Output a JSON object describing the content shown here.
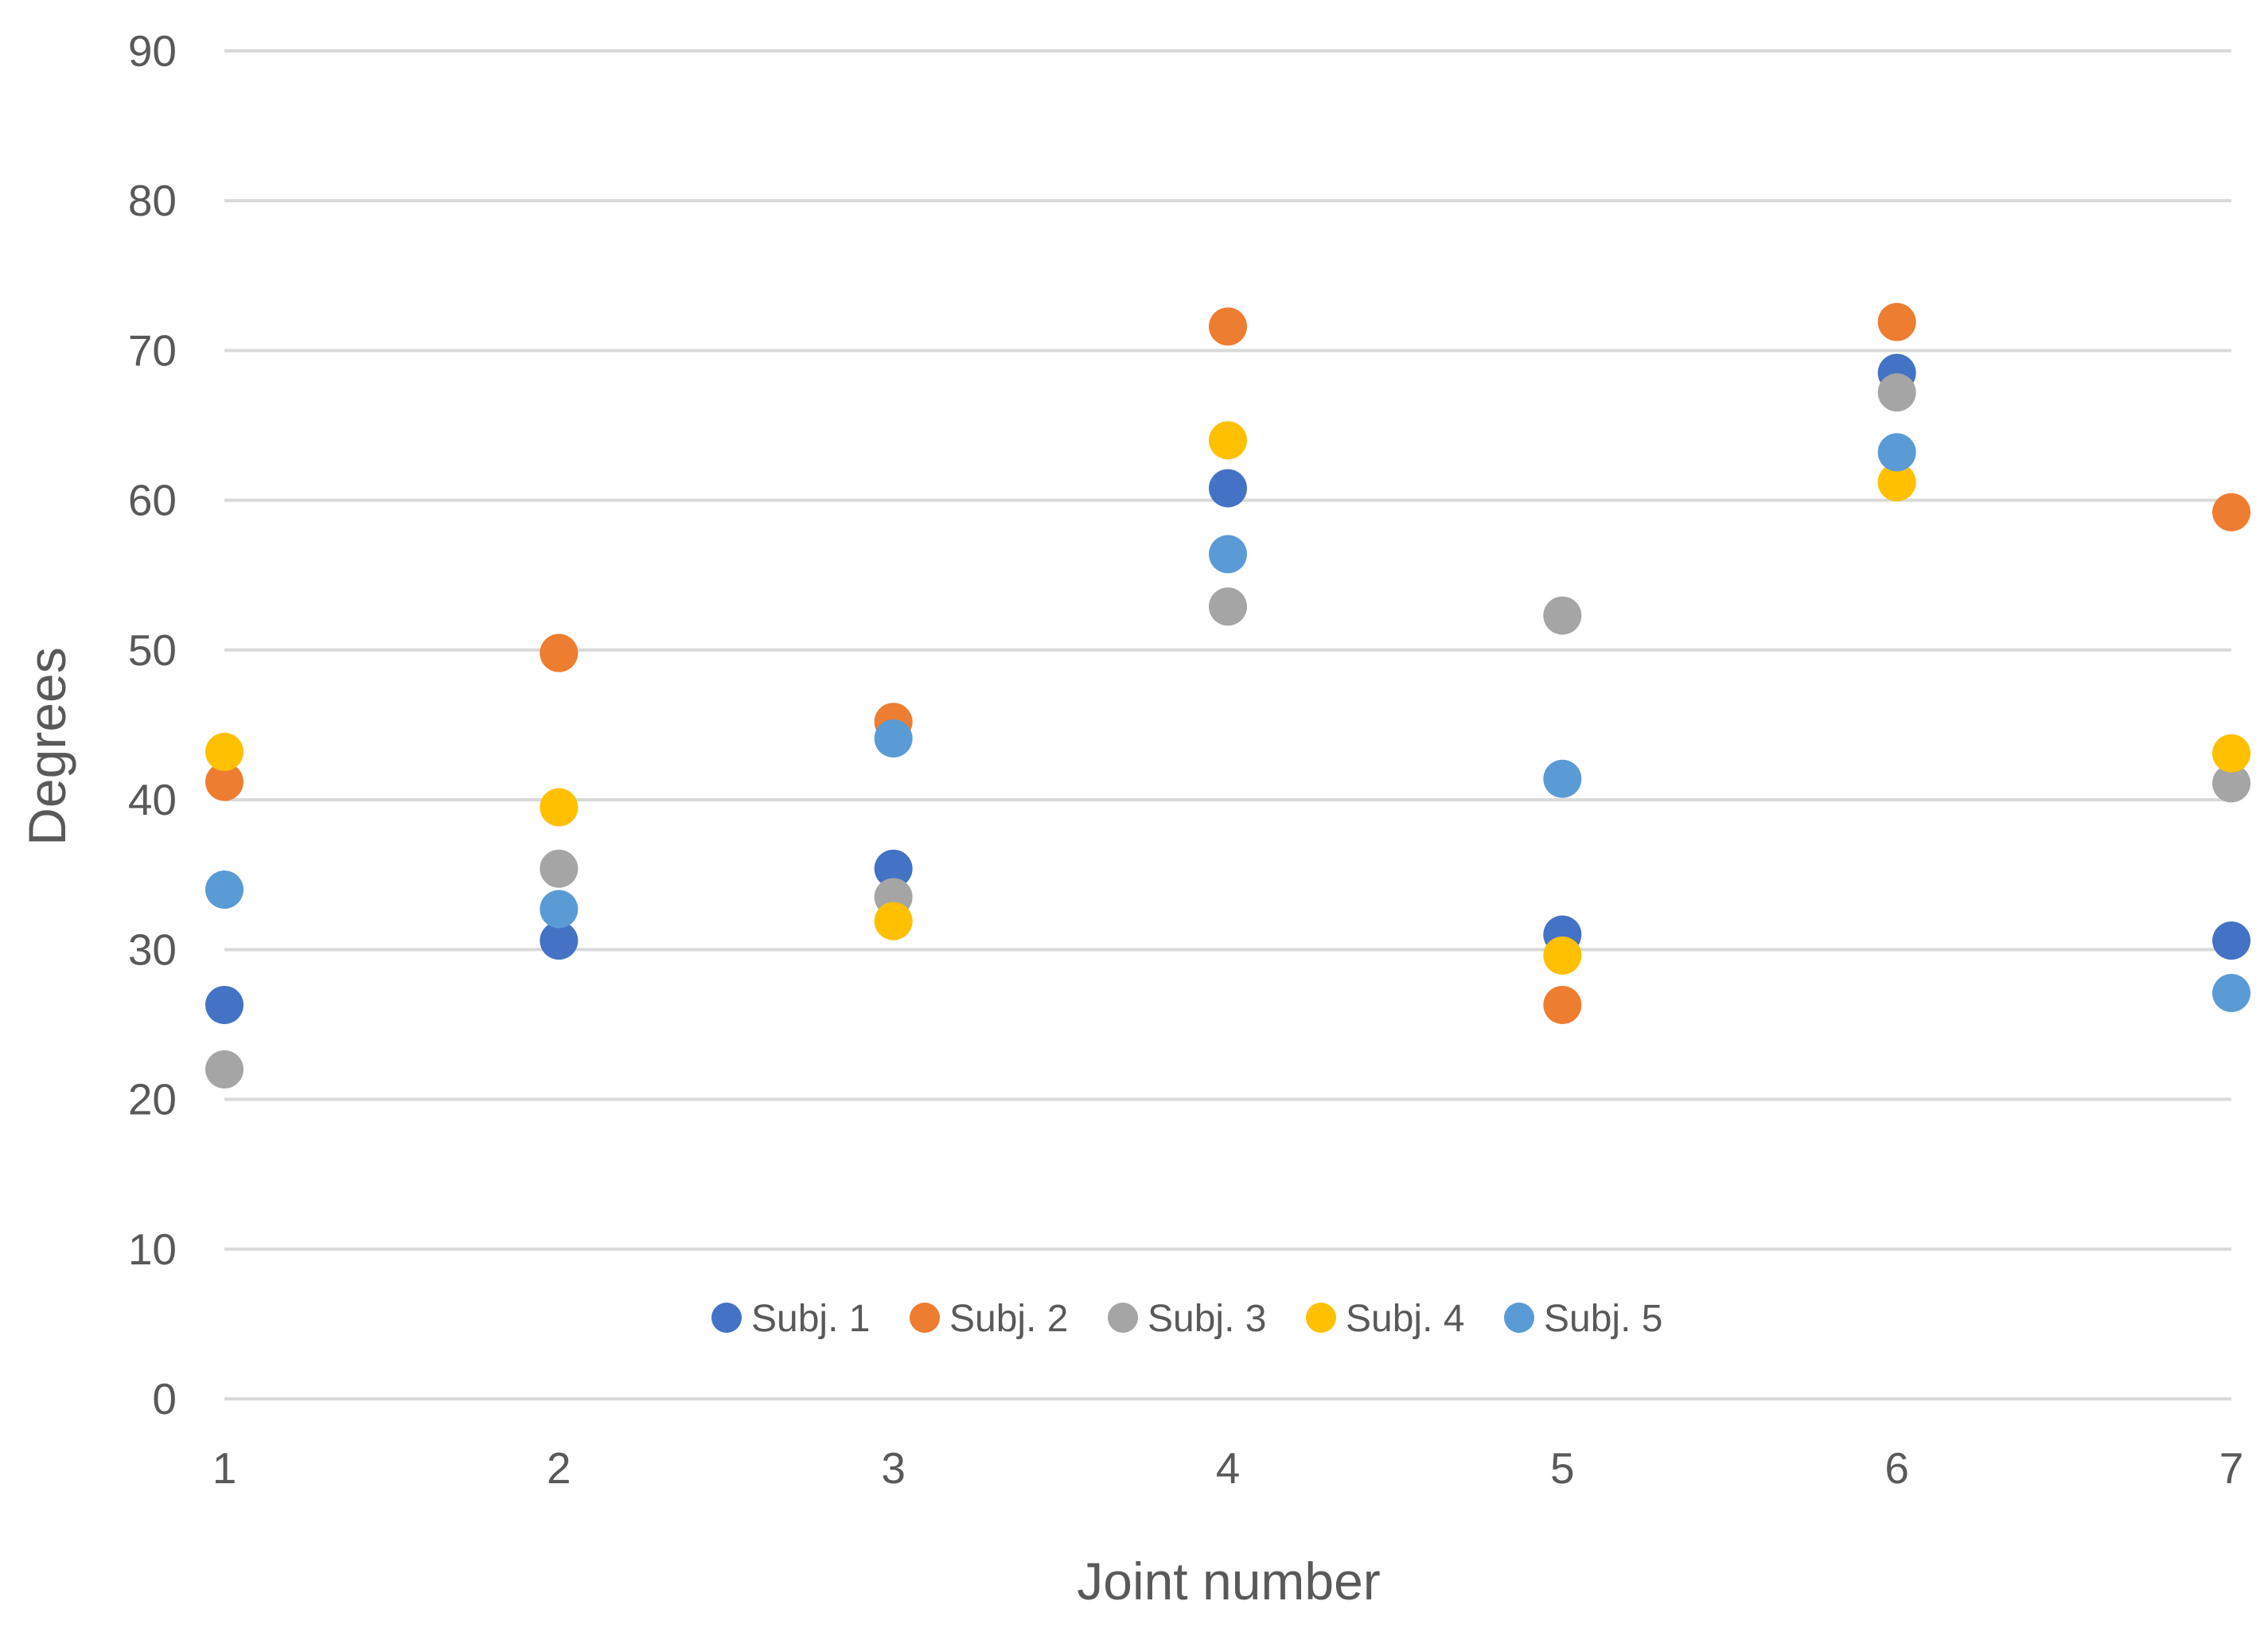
{
  "chart_data": {
    "type": "scatter",
    "title": "",
    "xlabel": "Joint number",
    "ylabel": "Degrees",
    "xlim": [
      1,
      7
    ],
    "ylim": [
      0,
      90
    ],
    "x_ticks": [
      1,
      2,
      3,
      4,
      5,
      6,
      7
    ],
    "y_ticks": [
      0,
      10,
      20,
      30,
      40,
      50,
      60,
      70,
      80,
      90
    ],
    "grid": true,
    "legend_position": "bottom-inside",
    "x": [
      1,
      2,
      3,
      4,
      5,
      6,
      7
    ],
    "series": [
      {
        "name": "Subj. 1",
        "color": "#4472c4",
        "values": [
          26.3,
          30.6,
          35.4,
          60.8,
          31.0,
          68.5,
          30.6
        ]
      },
      {
        "name": "Subj. 2",
        "color": "#ed7d31",
        "values": [
          41.2,
          49.8,
          45.2,
          71.6,
          26.3,
          71.9,
          59.2
        ]
      },
      {
        "name": "Subj. 3",
        "color": "#a5a5a5",
        "values": [
          22.0,
          35.4,
          33.5,
          52.9,
          52.3,
          67.2,
          41.1
        ]
      },
      {
        "name": "Subj. 4",
        "color": "#ffc000",
        "values": [
          43.2,
          39.5,
          31.9,
          64.0,
          29.6,
          61.2,
          43.1
        ]
      },
      {
        "name": "Subj. 5",
        "color": "#5b9bd5",
        "values": [
          34.0,
          32.7,
          44.1,
          56.4,
          41.4,
          63.2,
          27.1
        ]
      }
    ]
  }
}
